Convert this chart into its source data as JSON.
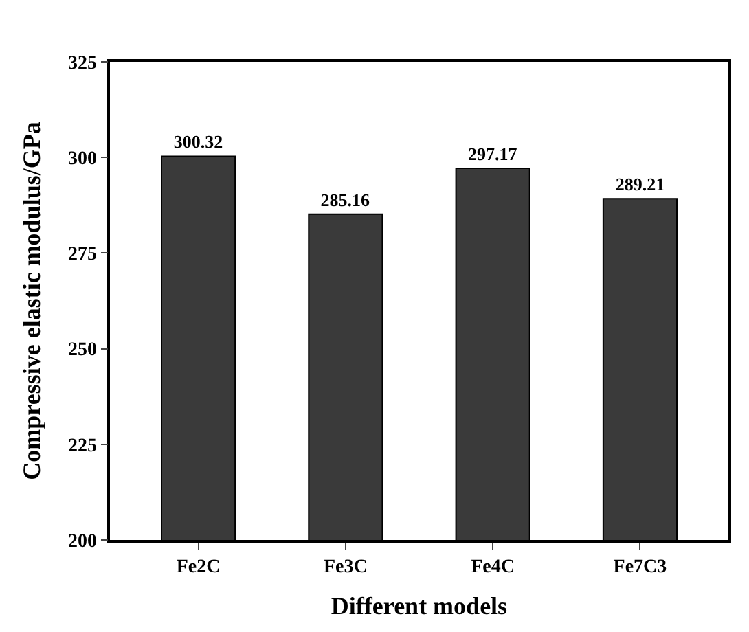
{
  "chart_data": {
    "type": "bar",
    "xlabel": "Different models",
    "ylabel": "Compressive elastic modulus/GPa",
    "categories": [
      "Fe2C",
      "Fe3C",
      "Fe4C",
      "Fe7C3"
    ],
    "values": [
      300.32,
      285.16,
      297.17,
      289.21
    ],
    "color": "#3a3a3a",
    "ylim": [
      200,
      325
    ],
    "yticks": [
      200,
      225,
      250,
      275,
      300,
      325
    ],
    "data_labels": true
  }
}
